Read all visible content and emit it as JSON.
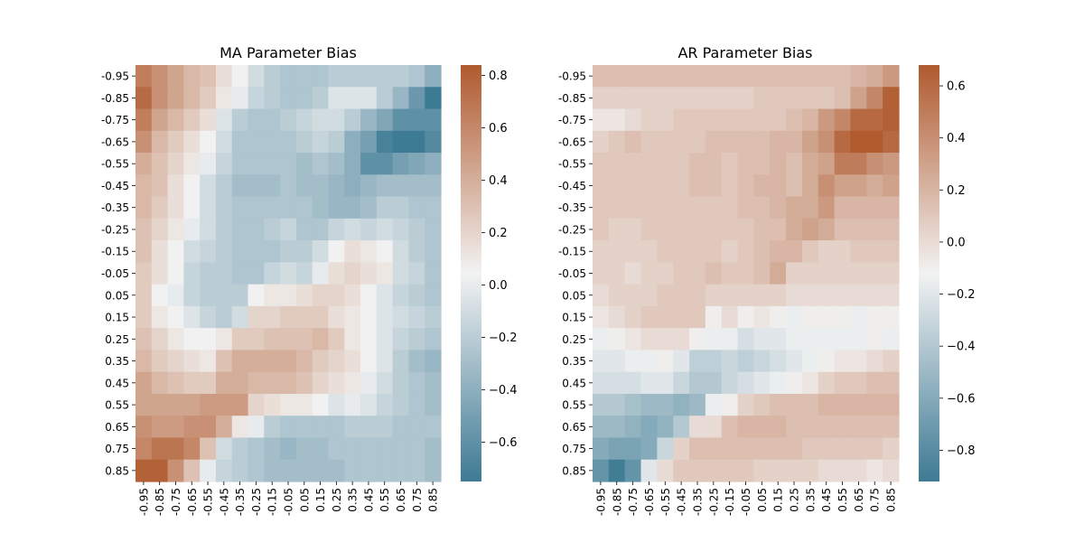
{
  "chart_data": [
    {
      "type": "heatmap",
      "title": "MA Parameter Bias",
      "xlabel": "",
      "ylabel": "",
      "x_categories": [
        "-0.95",
        "-0.85",
        "-0.75",
        "-0.65",
        "-0.55",
        "-0.45",
        "-0.35",
        "-0.25",
        "-0.15",
        "-0.05",
        "0.05",
        "0.15",
        "0.25",
        "0.35",
        "0.45",
        "0.55",
        "0.65",
        "0.75",
        "0.85"
      ],
      "y_categories": [
        "-0.95",
        "-0.85",
        "-0.75",
        "-0.65",
        "-0.55",
        "-0.45",
        "-0.35",
        "-0.25",
        "-0.15",
        "-0.05",
        "0.05",
        "0.15",
        "0.25",
        "0.35",
        "0.45",
        "0.55",
        "0.65",
        "0.75",
        "0.85"
      ],
      "vmin": -0.75,
      "vmax": 0.84,
      "colorbar_ticks": [
        -0.6,
        -0.4,
        -0.2,
        0.0,
        0.2,
        0.4,
        0.6,
        0.8
      ],
      "colormap": [
        "#3d7a94",
        "#f2f2f2",
        "#b05a2e"
      ],
      "values": [
        [
          0.65,
          0.55,
          0.45,
          0.35,
          0.3,
          0.15,
          0.05,
          -0.1,
          -0.2,
          -0.25,
          -0.25,
          -0.25,
          -0.2,
          -0.2,
          -0.2,
          -0.2,
          -0.2,
          -0.25,
          -0.4
        ],
        [
          0.75,
          0.55,
          0.45,
          0.35,
          0.25,
          0.1,
          0.0,
          -0.15,
          -0.2,
          -0.25,
          -0.25,
          -0.2,
          -0.05,
          -0.05,
          -0.05,
          -0.2,
          -0.35,
          -0.55,
          -0.75
        ],
        [
          0.65,
          0.45,
          0.35,
          0.25,
          0.15,
          -0.05,
          -0.2,
          -0.25,
          -0.25,
          -0.2,
          -0.15,
          -0.1,
          -0.1,
          -0.2,
          -0.35,
          -0.45,
          -0.6,
          -0.6,
          -0.6
        ],
        [
          0.55,
          0.35,
          0.25,
          0.15,
          0.05,
          -0.1,
          -0.25,
          -0.25,
          -0.25,
          -0.25,
          -0.2,
          -0.15,
          -0.2,
          -0.4,
          -0.5,
          -0.7,
          -0.75,
          -0.75,
          -0.65
        ],
        [
          0.4,
          0.3,
          0.2,
          0.1,
          0.0,
          -0.15,
          -0.25,
          -0.25,
          -0.25,
          -0.25,
          -0.3,
          -0.25,
          -0.3,
          -0.4,
          -0.6,
          -0.6,
          -0.5,
          -0.45,
          -0.4
        ],
        [
          0.35,
          0.3,
          0.15,
          0.05,
          -0.1,
          -0.2,
          -0.3,
          -0.3,
          -0.3,
          -0.25,
          -0.3,
          -0.3,
          -0.35,
          -0.4,
          -0.35,
          -0.3,
          -0.3,
          -0.3,
          -0.3
        ],
        [
          0.35,
          0.25,
          0.15,
          0.05,
          -0.1,
          -0.2,
          -0.25,
          -0.25,
          -0.25,
          -0.25,
          -0.25,
          -0.3,
          -0.35,
          -0.35,
          -0.3,
          -0.2,
          -0.2,
          -0.25,
          -0.25
        ],
        [
          0.3,
          0.2,
          0.1,
          0.0,
          -0.1,
          -0.2,
          -0.25,
          -0.25,
          -0.2,
          -0.15,
          -0.25,
          -0.25,
          -0.15,
          -0.1,
          -0.15,
          -0.1,
          -0.15,
          -0.2,
          -0.25
        ],
        [
          0.3,
          0.15,
          0.05,
          -0.1,
          -0.15,
          -0.2,
          -0.25,
          -0.25,
          -0.25,
          -0.2,
          -0.2,
          -0.1,
          0.05,
          0.15,
          0.1,
          0.05,
          -0.1,
          -0.2,
          -0.25
        ],
        [
          0.25,
          0.15,
          0.05,
          -0.15,
          -0.2,
          -0.2,
          -0.25,
          -0.25,
          -0.15,
          -0.1,
          -0.15,
          0.0,
          0.15,
          0.2,
          0.15,
          0.1,
          -0.1,
          -0.15,
          -0.25
        ],
        [
          0.25,
          0.05,
          0.0,
          -0.15,
          -0.2,
          -0.2,
          -0.2,
          0.05,
          0.1,
          0.1,
          0.15,
          0.2,
          0.2,
          0.15,
          0.05,
          -0.05,
          -0.15,
          -0.2,
          -0.25
        ],
        [
          0.25,
          0.1,
          0.05,
          -0.05,
          -0.15,
          -0.2,
          -0.1,
          0.2,
          0.2,
          0.25,
          0.25,
          0.25,
          0.15,
          0.1,
          0.05,
          -0.05,
          -0.1,
          -0.15,
          -0.2
        ],
        [
          0.3,
          0.2,
          0.1,
          0.05,
          0.05,
          0.1,
          0.25,
          0.25,
          0.3,
          0.3,
          0.3,
          0.35,
          0.25,
          0.1,
          0.05,
          -0.05,
          -0.15,
          -0.2,
          -0.25
        ],
        [
          0.35,
          0.25,
          0.2,
          0.15,
          0.1,
          0.3,
          0.4,
          0.4,
          0.4,
          0.4,
          0.35,
          0.25,
          0.2,
          0.15,
          0.05,
          -0.05,
          -0.2,
          -0.3,
          -0.35
        ],
        [
          0.45,
          0.35,
          0.3,
          0.25,
          0.25,
          0.4,
          0.4,
          0.35,
          0.35,
          0.35,
          0.3,
          0.2,
          0.15,
          0.1,
          0.0,
          -0.1,
          -0.2,
          -0.25,
          -0.3
        ],
        [
          0.45,
          0.45,
          0.45,
          0.45,
          0.5,
          0.5,
          0.5,
          0.2,
          0.15,
          0.1,
          0.1,
          0.05,
          -0.05,
          0.0,
          -0.05,
          -0.15,
          -0.2,
          -0.25,
          -0.3
        ],
        [
          0.55,
          0.5,
          0.5,
          0.55,
          0.55,
          0.4,
          0.1,
          0.0,
          -0.2,
          -0.25,
          -0.25,
          -0.25,
          -0.25,
          -0.2,
          -0.2,
          -0.2,
          -0.25,
          -0.25,
          -0.25
        ],
        [
          0.6,
          0.7,
          0.7,
          0.6,
          0.3,
          -0.1,
          -0.2,
          -0.25,
          -0.3,
          -0.35,
          -0.3,
          -0.3,
          -0.25,
          -0.25,
          -0.25,
          -0.25,
          -0.25,
          -0.25,
          -0.3
        ],
        [
          0.8,
          0.8,
          0.55,
          0.3,
          0.0,
          -0.15,
          -0.2,
          -0.25,
          -0.3,
          -0.3,
          -0.3,
          -0.3,
          -0.3,
          -0.25,
          -0.25,
          -0.25,
          -0.25,
          -0.25,
          -0.3
        ]
      ]
    },
    {
      "type": "heatmap",
      "title": "AR Parameter Bias",
      "xlabel": "",
      "ylabel": "",
      "x_categories": [
        "-0.95",
        "-0.85",
        "-0.75",
        "-0.65",
        "-0.55",
        "-0.45",
        "-0.35",
        "-0.25",
        "-0.15",
        "-0.05",
        "0.05",
        "0.15",
        "0.25",
        "0.35",
        "0.45",
        "0.55",
        "0.65",
        "0.75",
        "0.85"
      ],
      "y_categories": [
        "-0.95",
        "-0.85",
        "-0.75",
        "-0.65",
        "-0.55",
        "-0.45",
        "-0.35",
        "-0.25",
        "-0.15",
        "-0.05",
        "0.05",
        "0.15",
        "0.25",
        "0.35",
        "0.45",
        "0.55",
        "0.65",
        "0.75",
        "0.85"
      ],
      "vmin": -0.92,
      "vmax": 0.68,
      "colorbar_ticks": [
        -0.8,
        -0.6,
        -0.4,
        -0.2,
        0.0,
        0.2,
        0.4,
        0.6
      ],
      "colormap": [
        "#3d7a94",
        "#f2f2f2",
        "#b05a2e"
      ],
      "values": [
        [
          0.15,
          0.15,
          0.15,
          0.15,
          0.15,
          0.15,
          0.15,
          0.15,
          0.15,
          0.15,
          0.15,
          0.15,
          0.15,
          0.15,
          0.15,
          0.15,
          0.2,
          0.25,
          0.35
        ],
        [
          0.05,
          0.05,
          0.05,
          0.05,
          0.05,
          0.05,
          0.05,
          0.05,
          0.05,
          0.05,
          0.1,
          0.1,
          0.1,
          0.1,
          0.1,
          0.15,
          0.3,
          0.45,
          0.65
        ],
        [
          -0.05,
          -0.05,
          0.0,
          0.05,
          0.05,
          0.1,
          0.1,
          0.1,
          0.1,
          0.1,
          0.1,
          0.1,
          0.15,
          0.2,
          0.35,
          0.45,
          0.6,
          0.6,
          0.65
        ],
        [
          0.05,
          0.1,
          0.15,
          0.1,
          0.1,
          0.1,
          0.1,
          0.15,
          0.15,
          0.15,
          0.15,
          0.2,
          0.2,
          0.3,
          0.4,
          0.6,
          0.68,
          0.68,
          0.6
        ],
        [
          0.1,
          0.1,
          0.1,
          0.1,
          0.1,
          0.1,
          0.15,
          0.15,
          0.1,
          0.15,
          0.15,
          0.2,
          0.15,
          0.25,
          0.3,
          0.5,
          0.5,
          0.4,
          0.35
        ],
        [
          0.1,
          0.1,
          0.1,
          0.1,
          0.1,
          0.1,
          0.15,
          0.15,
          0.1,
          0.15,
          0.2,
          0.2,
          0.15,
          0.25,
          0.4,
          0.3,
          0.3,
          0.25,
          0.3
        ],
        [
          0.1,
          0.1,
          0.1,
          0.1,
          0.1,
          0.1,
          0.1,
          0.1,
          0.1,
          0.15,
          0.15,
          0.2,
          0.25,
          0.25,
          0.35,
          0.2,
          0.2,
          0.2,
          0.2
        ],
        [
          0.1,
          0.05,
          0.05,
          0.1,
          0.1,
          0.1,
          0.1,
          0.1,
          0.1,
          0.1,
          0.15,
          0.15,
          0.25,
          0.3,
          0.25,
          0.15,
          0.15,
          0.15,
          0.15
        ],
        [
          0.05,
          0.05,
          0.05,
          0.05,
          0.1,
          0.1,
          0.1,
          0.1,
          0.05,
          0.1,
          0.15,
          0.2,
          0.2,
          0.1,
          0.05,
          0.05,
          0.1,
          0.1,
          0.1
        ],
        [
          0.05,
          0.05,
          0.0,
          0.05,
          0.05,
          0.1,
          0.1,
          0.15,
          0.1,
          0.1,
          0.15,
          0.25,
          0.05,
          0.05,
          0.05,
          0.05,
          0.05,
          0.05,
          0.05
        ],
        [
          0.0,
          0.05,
          0.05,
          0.05,
          0.1,
          0.1,
          0.1,
          0.05,
          0.05,
          0.05,
          0.05,
          0.05,
          0.0,
          0.0,
          0.0,
          0.0,
          0.0,
          0.0,
          0.0
        ],
        [
          -0.05,
          0.0,
          0.05,
          0.1,
          0.1,
          0.1,
          0.1,
          -0.1,
          0.0,
          -0.1,
          -0.05,
          -0.1,
          -0.15,
          -0.1,
          -0.1,
          -0.1,
          -0.15,
          -0.1,
          -0.1
        ],
        [
          -0.15,
          -0.1,
          -0.05,
          0.0,
          0.0,
          0.0,
          -0.1,
          -0.15,
          -0.15,
          -0.25,
          -0.2,
          -0.2,
          -0.15,
          -0.15,
          -0.15,
          -0.15,
          -0.15,
          -0.1,
          -0.15
        ],
        [
          -0.2,
          -0.2,
          -0.15,
          -0.15,
          -0.1,
          -0.2,
          -0.35,
          -0.35,
          -0.3,
          -0.35,
          -0.3,
          -0.25,
          -0.2,
          -0.15,
          -0.1,
          -0.05,
          -0.05,
          0.0,
          0.05
        ],
        [
          -0.25,
          -0.25,
          -0.25,
          -0.2,
          -0.2,
          -0.3,
          -0.4,
          -0.4,
          -0.3,
          -0.25,
          -0.2,
          -0.15,
          -0.1,
          -0.05,
          0.05,
          0.1,
          0.1,
          0.15,
          0.15
        ],
        [
          -0.4,
          -0.4,
          -0.45,
          -0.5,
          -0.5,
          -0.55,
          -0.5,
          -0.15,
          -0.1,
          0.05,
          0.1,
          0.15,
          0.15,
          0.15,
          0.2,
          0.2,
          0.2,
          0.2,
          0.2
        ],
        [
          -0.5,
          -0.5,
          -0.55,
          -0.6,
          -0.55,
          -0.4,
          0.0,
          0.0,
          0.15,
          0.2,
          0.2,
          0.2,
          0.15,
          0.15,
          0.15,
          0.15,
          0.15,
          0.15,
          0.15
        ],
        [
          -0.6,
          -0.65,
          -0.65,
          -0.6,
          -0.3,
          0.05,
          0.15,
          0.15,
          0.15,
          0.15,
          0.15,
          0.15,
          0.15,
          0.1,
          0.1,
          0.1,
          0.1,
          0.1,
          0.05
        ],
        [
          -0.75,
          -0.9,
          -0.75,
          -0.2,
          0.0,
          0.1,
          0.1,
          0.1,
          0.1,
          0.1,
          0.05,
          0.05,
          0.05,
          0.05,
          0.0,
          0.0,
          0.0,
          -0.05,
          0.0
        ]
      ]
    }
  ]
}
